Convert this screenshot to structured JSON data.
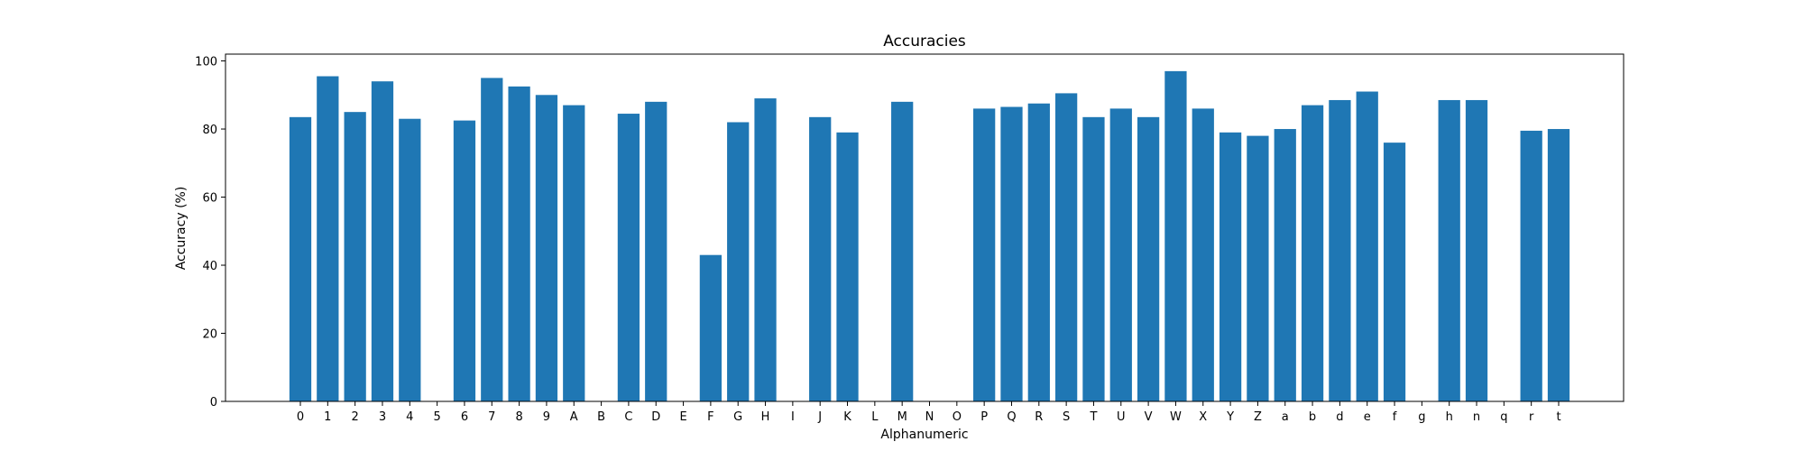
{
  "chart_data": {
    "type": "bar",
    "title": "Accuracies",
    "xlabel": "Alphanumeric",
    "ylabel": "Accuracy (%)",
    "ylim": [
      0,
      102
    ],
    "yticks": [
      0,
      20,
      40,
      60,
      80,
      100
    ],
    "grid": false,
    "bar_color": "#1f77b4",
    "categories": [
      "0",
      "1",
      "2",
      "3",
      "4",
      "5",
      "6",
      "7",
      "8",
      "9",
      "A",
      "B",
      "C",
      "D",
      "E",
      "F",
      "G",
      "H",
      "I",
      "J",
      "K",
      "L",
      "M",
      "N",
      "O",
      "P",
      "Q",
      "R",
      "S",
      "T",
      "U",
      "V",
      "W",
      "X",
      "Y",
      "Z",
      "a",
      "b",
      "d",
      "e",
      "f",
      "g",
      "h",
      "n",
      "q",
      "r",
      "t"
    ],
    "values": [
      83.5,
      95.5,
      85.0,
      94.0,
      83.0,
      0,
      82.5,
      95.0,
      92.5,
      90.0,
      87.0,
      0,
      84.5,
      88.0,
      0,
      43.0,
      82.0,
      89.0,
      0,
      83.5,
      79.0,
      0,
      88.0,
      0,
      0,
      86.0,
      86.5,
      87.5,
      90.5,
      83.5,
      86.0,
      83.5,
      97.0,
      86.0,
      79.0,
      78.0,
      80.0,
      87.0,
      88.5,
      91.0,
      76.0,
      0,
      88.5,
      88.5,
      0,
      79.5,
      80.0
    ]
  }
}
